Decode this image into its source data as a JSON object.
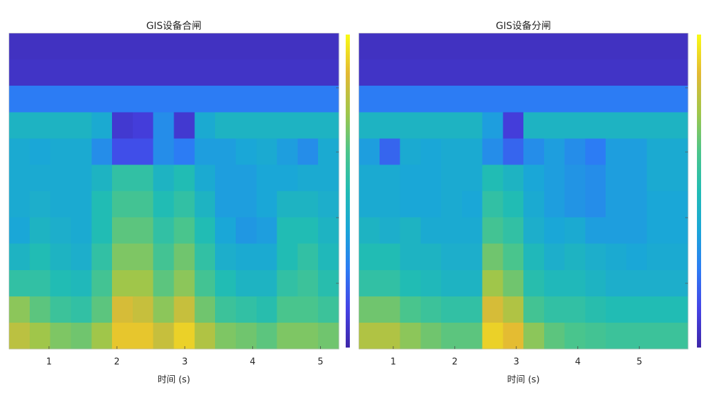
{
  "chart_data": [
    {
      "type": "heatmap",
      "title": "GIS设备合闸",
      "xlabel": "时间 (s)",
      "xlim": [
        0.41,
        5.27
      ],
      "xticks": [
        1,
        2,
        3,
        4,
        5
      ],
      "clim": [
        0,
        1
      ],
      "colormap": [
        "#3e26a8",
        "#4543e6",
        "#2c7cf4",
        "#1aa6d8",
        "#21bcb4",
        "#4bc58b",
        "#a0c64a",
        "#e3b933",
        "#f9fb15"
      ],
      "values": [
        [
          0.05,
          0.05,
          0.05,
          0.05,
          0.05,
          0.05,
          0.05,
          0.05,
          0.05,
          0.05,
          0.05,
          0.05,
          0.05,
          0.05,
          0.05,
          0.05
        ],
        [
          0.06,
          0.06,
          0.06,
          0.06,
          0.06,
          0.06,
          0.06,
          0.06,
          0.06,
          0.06,
          0.06,
          0.06,
          0.06,
          0.06,
          0.06,
          0.06
        ],
        [
          0.25,
          0.25,
          0.25,
          0.25,
          0.25,
          0.25,
          0.25,
          0.25,
          0.25,
          0.25,
          0.25,
          0.25,
          0.25,
          0.25,
          0.25,
          0.25
        ],
        [
          0.45,
          0.45,
          0.45,
          0.45,
          0.4,
          0.08,
          0.1,
          0.3,
          0.08,
          0.4,
          0.45,
          0.45,
          0.45,
          0.45,
          0.45,
          0.45
        ],
        [
          0.4,
          0.38,
          0.4,
          0.4,
          0.3,
          0.15,
          0.15,
          0.3,
          0.25,
          0.35,
          0.35,
          0.38,
          0.4,
          0.35,
          0.3,
          0.4
        ],
        [
          0.4,
          0.4,
          0.4,
          0.4,
          0.45,
          0.55,
          0.55,
          0.45,
          0.5,
          0.4,
          0.35,
          0.35,
          0.38,
          0.38,
          0.4,
          0.4
        ],
        [
          0.4,
          0.42,
          0.4,
          0.4,
          0.5,
          0.6,
          0.6,
          0.5,
          0.55,
          0.45,
          0.35,
          0.35,
          0.38,
          0.45,
          0.45,
          0.42
        ],
        [
          0.38,
          0.45,
          0.42,
          0.4,
          0.5,
          0.65,
          0.65,
          0.55,
          0.62,
          0.5,
          0.38,
          0.33,
          0.35,
          0.5,
          0.5,
          0.45
        ],
        [
          0.45,
          0.5,
          0.45,
          0.42,
          0.55,
          0.7,
          0.7,
          0.6,
          0.68,
          0.55,
          0.42,
          0.4,
          0.4,
          0.5,
          0.55,
          0.48
        ],
        [
          0.55,
          0.55,
          0.5,
          0.48,
          0.6,
          0.75,
          0.75,
          0.65,
          0.72,
          0.6,
          0.5,
          0.45,
          0.45,
          0.55,
          0.58,
          0.52
        ],
        [
          0.72,
          0.65,
          0.58,
          0.55,
          0.65,
          0.85,
          0.82,
          0.72,
          0.82,
          0.68,
          0.58,
          0.55,
          0.52,
          0.62,
          0.62,
          0.58
        ],
        [
          0.8,
          0.75,
          0.7,
          0.68,
          0.75,
          0.9,
          0.9,
          0.82,
          0.92,
          0.78,
          0.7,
          0.68,
          0.65,
          0.7,
          0.7,
          0.68
        ]
      ]
    },
    {
      "type": "heatmap",
      "title": "GIS设备分闸",
      "xlabel": "时间 (s)",
      "xlim": [
        0.44,
        5.79
      ],
      "xticks": [
        1,
        2,
        3,
        4,
        5
      ],
      "clim": [
        0,
        1
      ],
      "colormap": [
        "#3e26a8",
        "#4543e6",
        "#2c7cf4",
        "#1aa6d8",
        "#21bcb4",
        "#4bc58b",
        "#a0c64a",
        "#e3b933",
        "#f9fb15"
      ],
      "values": [
        [
          0.05,
          0.05,
          0.05,
          0.05,
          0.05,
          0.05,
          0.05,
          0.05,
          0.05,
          0.05,
          0.05,
          0.05,
          0.05,
          0.05,
          0.05,
          0.05
        ],
        [
          0.06,
          0.06,
          0.06,
          0.06,
          0.06,
          0.06,
          0.06,
          0.06,
          0.06,
          0.06,
          0.06,
          0.06,
          0.06,
          0.06,
          0.06,
          0.06
        ],
        [
          0.25,
          0.25,
          0.25,
          0.25,
          0.25,
          0.25,
          0.25,
          0.25,
          0.25,
          0.25,
          0.25,
          0.25,
          0.25,
          0.25,
          0.25,
          0.25
        ],
        [
          0.45,
          0.45,
          0.45,
          0.45,
          0.45,
          0.45,
          0.35,
          0.1,
          0.45,
          0.45,
          0.45,
          0.45,
          0.45,
          0.45,
          0.45,
          0.45
        ],
        [
          0.35,
          0.2,
          0.4,
          0.38,
          0.4,
          0.4,
          0.3,
          0.2,
          0.3,
          0.35,
          0.3,
          0.25,
          0.35,
          0.35,
          0.4,
          0.4
        ],
        [
          0.4,
          0.4,
          0.38,
          0.38,
          0.4,
          0.4,
          0.5,
          0.45,
          0.38,
          0.35,
          0.32,
          0.3,
          0.35,
          0.35,
          0.4,
          0.4
        ],
        [
          0.4,
          0.4,
          0.38,
          0.38,
          0.4,
          0.38,
          0.55,
          0.5,
          0.4,
          0.35,
          0.32,
          0.3,
          0.35,
          0.35,
          0.38,
          0.38
        ],
        [
          0.45,
          0.42,
          0.45,
          0.4,
          0.4,
          0.4,
          0.6,
          0.55,
          0.42,
          0.38,
          0.4,
          0.35,
          0.35,
          0.35,
          0.38,
          0.38
        ],
        [
          0.5,
          0.5,
          0.45,
          0.45,
          0.42,
          0.42,
          0.68,
          0.62,
          0.48,
          0.42,
          0.45,
          0.42,
          0.4,
          0.38,
          0.4,
          0.4
        ],
        [
          0.55,
          0.55,
          0.5,
          0.48,
          0.45,
          0.45,
          0.75,
          0.68,
          0.52,
          0.48,
          0.48,
          0.45,
          0.42,
          0.42,
          0.42,
          0.42
        ],
        [
          0.68,
          0.68,
          0.62,
          0.58,
          0.55,
          0.55,
          0.85,
          0.78,
          0.6,
          0.55,
          0.55,
          0.52,
          0.5,
          0.5,
          0.5,
          0.5
        ],
        [
          0.78,
          0.78,
          0.72,
          0.68,
          0.65,
          0.65,
          0.92,
          0.88,
          0.72,
          0.65,
          0.62,
          0.6,
          0.58,
          0.58,
          0.58,
          0.58
        ]
      ]
    }
  ]
}
